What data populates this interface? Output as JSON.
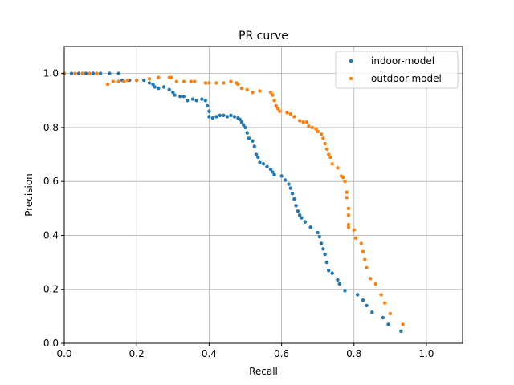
{
  "chart_data": {
    "type": "scatter",
    "title": "PR curve",
    "xlabel": "Recall",
    "ylabel": "Precision",
    "xlim": [
      0.0,
      1.1
    ],
    "ylim": [
      0.0,
      1.1
    ],
    "xticks": [
      0.0,
      0.2,
      0.4,
      0.6,
      0.8,
      1.0
    ],
    "yticks": [
      0.0,
      0.2,
      0.4,
      0.6,
      0.8,
      1.0
    ],
    "xtick_labels": [
      "0.0",
      "0.2",
      "0.4",
      "0.6",
      "0.8",
      "1.0"
    ],
    "ytick_labels": [
      "0.0",
      "0.2",
      "0.4",
      "0.6",
      "0.8",
      "1.0"
    ],
    "grid": true,
    "legend_position": "top-right",
    "series": [
      {
        "name": "indoor-model",
        "color": "#1f77b4",
        "points": [
          [
            0.0,
            1.0
          ],
          [
            0.02,
            1.0
          ],
          [
            0.04,
            1.0
          ],
          [
            0.06,
            1.0
          ],
          [
            0.08,
            1.0
          ],
          [
            0.1,
            1.0
          ],
          [
            0.125,
            1.0
          ],
          [
            0.15,
            1.0
          ],
          [
            0.16,
            0.975
          ],
          [
            0.18,
            0.975
          ],
          [
            0.2,
            0.975
          ],
          [
            0.22,
            0.975
          ],
          [
            0.235,
            0.965
          ],
          [
            0.245,
            0.96
          ],
          [
            0.25,
            0.95
          ],
          [
            0.26,
            0.945
          ],
          [
            0.275,
            0.95
          ],
          [
            0.29,
            0.94
          ],
          [
            0.3,
            0.93
          ],
          [
            0.305,
            0.92
          ],
          [
            0.32,
            0.915
          ],
          [
            0.33,
            0.915
          ],
          [
            0.34,
            0.9
          ],
          [
            0.355,
            0.905
          ],
          [
            0.365,
            0.9
          ],
          [
            0.38,
            0.905
          ],
          [
            0.39,
            0.9
          ],
          [
            0.395,
            0.88
          ],
          [
            0.4,
            0.86
          ],
          [
            0.4,
            0.84
          ],
          [
            0.41,
            0.835
          ],
          [
            0.42,
            0.84
          ],
          [
            0.43,
            0.845
          ],
          [
            0.44,
            0.845
          ],
          [
            0.45,
            0.84
          ],
          [
            0.46,
            0.845
          ],
          [
            0.47,
            0.84
          ],
          [
            0.48,
            0.835
          ],
          [
            0.485,
            0.83
          ],
          [
            0.49,
            0.82
          ],
          [
            0.495,
            0.81
          ],
          [
            0.5,
            0.8
          ],
          [
            0.505,
            0.78
          ],
          [
            0.51,
            0.76
          ],
          [
            0.52,
            0.75
          ],
          [
            0.525,
            0.73
          ],
          [
            0.53,
            0.7
          ],
          [
            0.535,
            0.69
          ],
          [
            0.54,
            0.67
          ],
          [
            0.55,
            0.665
          ],
          [
            0.56,
            0.655
          ],
          [
            0.57,
            0.645
          ],
          [
            0.575,
            0.635
          ],
          [
            0.58,
            0.625
          ],
          [
            0.6,
            0.62
          ],
          [
            0.61,
            0.605
          ],
          [
            0.62,
            0.59
          ],
          [
            0.625,
            0.575
          ],
          [
            0.63,
            0.555
          ],
          [
            0.635,
            0.535
          ],
          [
            0.64,
            0.51
          ],
          [
            0.645,
            0.49
          ],
          [
            0.65,
            0.475
          ],
          [
            0.655,
            0.465
          ],
          [
            0.665,
            0.45
          ],
          [
            0.68,
            0.43
          ],
          [
            0.7,
            0.41
          ],
          [
            0.705,
            0.395
          ],
          [
            0.71,
            0.37
          ],
          [
            0.715,
            0.35
          ],
          [
            0.72,
            0.33
          ],
          [
            0.725,
            0.3
          ],
          [
            0.73,
            0.27
          ],
          [
            0.74,
            0.26
          ],
          [
            0.755,
            0.235
          ],
          [
            0.76,
            0.22
          ],
          [
            0.775,
            0.195
          ],
          [
            0.81,
            0.18
          ],
          [
            0.825,
            0.16
          ],
          [
            0.835,
            0.14
          ],
          [
            0.85,
            0.115
          ],
          [
            0.88,
            0.095
          ],
          [
            0.895,
            0.07
          ],
          [
            0.93,
            0.045
          ]
        ]
      },
      {
        "name": "outdoor-model",
        "color": "#ff7f0e",
        "points": [
          [
            0.0,
            1.0
          ],
          [
            0.03,
            1.0
          ],
          [
            0.05,
            1.0
          ],
          [
            0.07,
            1.0
          ],
          [
            0.09,
            1.0
          ],
          [
            0.12,
            0.96
          ],
          [
            0.135,
            0.97
          ],
          [
            0.15,
            0.97
          ],
          [
            0.165,
            0.97
          ],
          [
            0.175,
            0.975
          ],
          [
            0.2,
            0.975
          ],
          [
            0.235,
            0.98
          ],
          [
            0.26,
            0.985
          ],
          [
            0.29,
            0.985
          ],
          [
            0.295,
            0.985
          ],
          [
            0.31,
            0.97
          ],
          [
            0.33,
            0.97
          ],
          [
            0.35,
            0.97
          ],
          [
            0.36,
            0.97
          ],
          [
            0.39,
            0.965
          ],
          [
            0.4,
            0.965
          ],
          [
            0.42,
            0.965
          ],
          [
            0.44,
            0.965
          ],
          [
            0.46,
            0.97
          ],
          [
            0.475,
            0.965
          ],
          [
            0.48,
            0.96
          ],
          [
            0.49,
            0.945
          ],
          [
            0.505,
            0.94
          ],
          [
            0.52,
            0.93
          ],
          [
            0.54,
            0.935
          ],
          [
            0.57,
            0.93
          ],
          [
            0.575,
            0.92
          ],
          [
            0.58,
            0.9
          ],
          [
            0.585,
            0.88
          ],
          [
            0.59,
            0.87
          ],
          [
            0.595,
            0.86
          ],
          [
            0.615,
            0.855
          ],
          [
            0.625,
            0.85
          ],
          [
            0.635,
            0.84
          ],
          [
            0.65,
            0.825
          ],
          [
            0.66,
            0.82
          ],
          [
            0.67,
            0.82
          ],
          [
            0.675,
            0.805
          ],
          [
            0.685,
            0.8
          ],
          [
            0.695,
            0.795
          ],
          [
            0.7,
            0.785
          ],
          [
            0.71,
            0.775
          ],
          [
            0.715,
            0.76
          ],
          [
            0.72,
            0.74
          ],
          [
            0.725,
            0.72
          ],
          [
            0.73,
            0.7
          ],
          [
            0.735,
            0.69
          ],
          [
            0.74,
            0.665
          ],
          [
            0.755,
            0.65
          ],
          [
            0.765,
            0.62
          ],
          [
            0.77,
            0.615
          ],
          [
            0.775,
            0.6
          ],
          [
            0.78,
            0.56
          ],
          [
            0.78,
            0.54
          ],
          [
            0.785,
            0.5
          ],
          [
            0.785,
            0.475
          ],
          [
            0.785,
            0.44
          ],
          [
            0.785,
            0.43
          ],
          [
            0.8,
            0.42
          ],
          [
            0.805,
            0.39
          ],
          [
            0.82,
            0.37
          ],
          [
            0.825,
            0.34
          ],
          [
            0.83,
            0.31
          ],
          [
            0.835,
            0.28
          ],
          [
            0.845,
            0.24
          ],
          [
            0.86,
            0.22
          ],
          [
            0.875,
            0.18
          ],
          [
            0.885,
            0.15
          ],
          [
            0.9,
            0.11
          ],
          [
            0.935,
            0.07
          ]
        ]
      }
    ]
  }
}
